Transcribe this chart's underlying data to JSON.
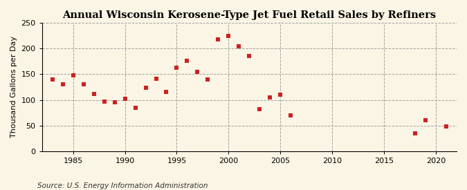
{
  "title": "Annual Wisconsin Kerosene-Type Jet Fuel Retail Sales by Refiners",
  "ylabel": "Thousand Gallons per Day",
  "source": "Source: U.S. Energy Information Administration",
  "years": [
    1983,
    1984,
    1985,
    1986,
    1987,
    1988,
    1989,
    1990,
    1991,
    1992,
    1993,
    1994,
    1995,
    1996,
    1997,
    1998,
    1999,
    2000,
    2001,
    2002,
    2003,
    2004,
    2005,
    2006,
    2018,
    2019,
    2021
  ],
  "values": [
    140,
    130,
    148,
    130,
    112,
    97,
    95,
    102,
    84,
    123,
    141,
    115,
    163,
    176,
    155,
    140,
    218,
    224,
    204,
    186,
    82,
    105,
    110,
    70,
    35,
    60,
    48
  ],
  "xlim": [
    1982,
    2022
  ],
  "ylim": [
    0,
    250
  ],
  "yticks": [
    0,
    50,
    100,
    150,
    200,
    250
  ],
  "xticks": [
    1985,
    1990,
    1995,
    2000,
    2005,
    2010,
    2015,
    2020
  ],
  "marker_color": "#cc2222",
  "marker": "s",
  "marker_size": 25,
  "bg_color": "#faf5e4",
  "grid_color": "#999999",
  "grid_linestyle": "--",
  "title_fontsize": 10.5,
  "label_fontsize": 8,
  "tick_fontsize": 8,
  "source_fontsize": 7.5
}
